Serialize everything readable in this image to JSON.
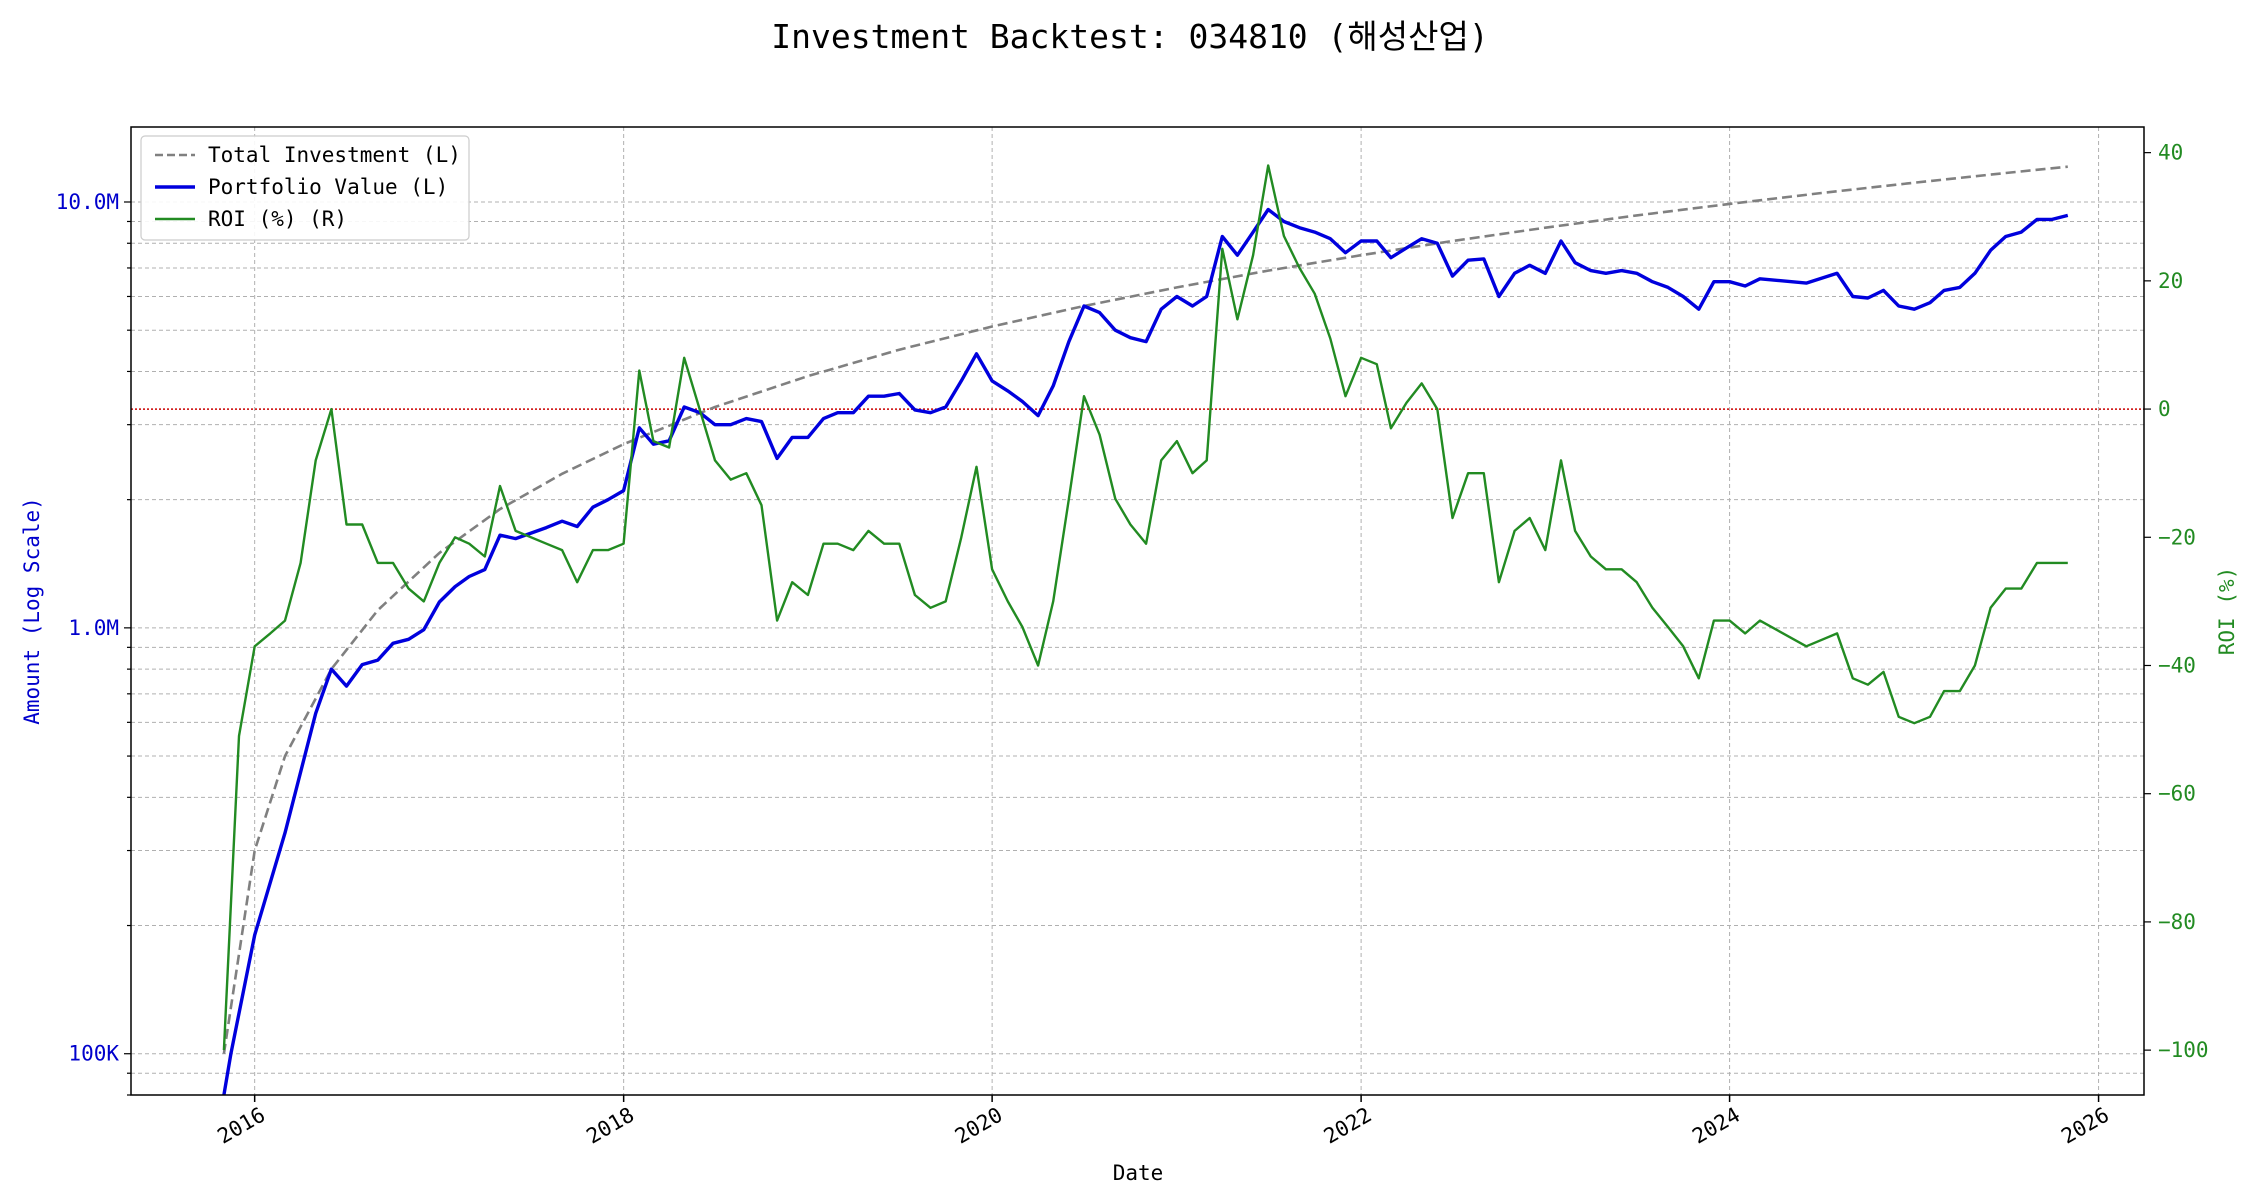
{
  "chart_data": {
    "type": "line",
    "title": "Investment Backtest: 034810 (해성산업)",
    "xlabel": "Date",
    "ylabel_left": "Amount (Log Scale)",
    "ylabel_right": "ROI (%)",
    "left_scale": "log",
    "left_ylim": [
      80000,
      15000000
    ],
    "right_ylim": [
      -107,
      44
    ],
    "xlim": [
      "2015-05-01",
      "2026-04-01"
    ],
    "grid": true,
    "legend_position": "top-left",
    "x_ticks": [
      "2016",
      "2018",
      "2020",
      "2022",
      "2024",
      "2026"
    ],
    "left_ticks": [
      {
        "value": 100000,
        "label": "100K"
      },
      {
        "value": 1000000,
        "label": "1.0M"
      },
      {
        "value": 10000000,
        "label": "10.0M"
      }
    ],
    "right_ticks": [
      -100,
      -80,
      -60,
      -40,
      -20,
      0,
      20,
      40
    ],
    "zero_reference_line": {
      "axis": "right",
      "value": 0,
      "color": "#cc0000"
    },
    "colors": {
      "left_axis": "#0000cc",
      "right_axis": "#228B22"
    },
    "series": [
      {
        "name": "Total Investment (L)",
        "axis": "left",
        "color": "#808080",
        "dash": "dashed",
        "points": [
          [
            "2015-11-01",
            100000
          ],
          [
            "2016-01-01",
            300000
          ],
          [
            "2016-03-01",
            500000
          ],
          [
            "2016-06-01",
            800000
          ],
          [
            "2016-09-01",
            1100000
          ],
          [
            "2017-01-01",
            1500000
          ],
          [
            "2017-05-01",
            1900000
          ],
          [
            "2017-09-01",
            2300000
          ],
          [
            "2018-01-01",
            2700000
          ],
          [
            "2018-07-01",
            3300000
          ],
          [
            "2019-01-01",
            3900000
          ],
          [
            "2019-07-01",
            4500000
          ],
          [
            "2020-01-01",
            5100000
          ],
          [
            "2020-07-01",
            5700000
          ],
          [
            "2021-01-01",
            6300000
          ],
          [
            "2021-07-01",
            6900000
          ],
          [
            "2022-01-01",
            7500000
          ],
          [
            "2022-07-01",
            8100000
          ],
          [
            "2023-01-01",
            8700000
          ],
          [
            "2023-07-01",
            9300000
          ],
          [
            "2024-01-01",
            9900000
          ],
          [
            "2024-07-01",
            10500000
          ],
          [
            "2025-01-01",
            11100000
          ],
          [
            "2025-07-01",
            11700000
          ],
          [
            "2025-11-01",
            12100000
          ]
        ]
      },
      {
        "name": "Portfolio Value (L)",
        "axis": "left",
        "color": "#0000dd",
        "dash": "solid",
        "points": [
          [
            "2015-11-01",
            70000
          ],
          [
            "2015-11-15",
            100000
          ],
          [
            "2016-01-01",
            190000
          ],
          [
            "2016-03-01",
            330000
          ],
          [
            "2016-05-01",
            630000
          ],
          [
            "2016-06-01",
            800000
          ],
          [
            "2016-07-01",
            730000
          ],
          [
            "2016-08-01",
            820000
          ],
          [
            "2016-09-01",
            840000
          ],
          [
            "2016-10-01",
            920000
          ],
          [
            "2016-11-01",
            940000
          ],
          [
            "2016-12-01",
            990000
          ],
          [
            "2017-01-01",
            1150000
          ],
          [
            "2017-02-01",
            1250000
          ],
          [
            "2017-03-01",
            1320000
          ],
          [
            "2017-04-01",
            1370000
          ],
          [
            "2017-05-01",
            1650000
          ],
          [
            "2017-06-01",
            1620000
          ],
          [
            "2017-08-01",
            1720000
          ],
          [
            "2017-09-01",
            1780000
          ],
          [
            "2017-10-01",
            1730000
          ],
          [
            "2017-11-01",
            1920000
          ],
          [
            "2017-12-01",
            2000000
          ],
          [
            "2018-01-01",
            2100000
          ],
          [
            "2018-02-01",
            2950000
          ],
          [
            "2018-03-01",
            2700000
          ],
          [
            "2018-04-01",
            2750000
          ],
          [
            "2018-05-01",
            3300000
          ],
          [
            "2018-06-01",
            3200000
          ],
          [
            "2018-07-01",
            3000000
          ],
          [
            "2018-08-01",
            3000000
          ],
          [
            "2018-09-01",
            3100000
          ],
          [
            "2018-10-01",
            3050000
          ],
          [
            "2018-11-01",
            2500000
          ],
          [
            "2018-12-01",
            2800000
          ],
          [
            "2019-01-01",
            2800000
          ],
          [
            "2019-02-01",
            3100000
          ],
          [
            "2019-03-01",
            3200000
          ],
          [
            "2019-04-01",
            3200000
          ],
          [
            "2019-05-01",
            3500000
          ],
          [
            "2019-06-01",
            3500000
          ],
          [
            "2019-07-01",
            3550000
          ],
          [
            "2019-08-01",
            3250000
          ],
          [
            "2019-09-01",
            3200000
          ],
          [
            "2019-10-01",
            3300000
          ],
          [
            "2019-11-01",
            3800000
          ],
          [
            "2019-12-01",
            4400000
          ],
          [
            "2020-01-01",
            3800000
          ],
          [
            "2020-02-01",
            3600000
          ],
          [
            "2020-03-01",
            3400000
          ],
          [
            "2020-04-01",
            3150000
          ],
          [
            "2020-05-01",
            3700000
          ],
          [
            "2020-06-01",
            4700000
          ],
          [
            "2020-07-01",
            5700000
          ],
          [
            "2020-08-01",
            5500000
          ],
          [
            "2020-09-01",
            5000000
          ],
          [
            "2020-10-01",
            4800000
          ],
          [
            "2020-11-01",
            4700000
          ],
          [
            "2020-12-01",
            5600000
          ],
          [
            "2021-01-01",
            6000000
          ],
          [
            "2021-02-01",
            5700000
          ],
          [
            "2021-03-01",
            6000000
          ],
          [
            "2021-04-01",
            8300000
          ],
          [
            "2021-05-01",
            7500000
          ],
          [
            "2021-06-01",
            8500000
          ],
          [
            "2021-07-01",
            9600000
          ],
          [
            "2021-08-01",
            9000000
          ],
          [
            "2021-09-01",
            8700000
          ],
          [
            "2021-10-01",
            8500000
          ],
          [
            "2021-11-01",
            8200000
          ],
          [
            "2021-12-01",
            7600000
          ],
          [
            "2022-01-01",
            8100000
          ],
          [
            "2022-02-01",
            8100000
          ],
          [
            "2022-03-01",
            7400000
          ],
          [
            "2022-04-01",
            7800000
          ],
          [
            "2022-05-01",
            8200000
          ],
          [
            "2022-06-01",
            8000000
          ],
          [
            "2022-07-01",
            6700000
          ],
          [
            "2022-08-01",
            7300000
          ],
          [
            "2022-09-01",
            7350000
          ],
          [
            "2022-10-01",
            6000000
          ],
          [
            "2022-11-01",
            6800000
          ],
          [
            "2022-12-01",
            7100000
          ],
          [
            "2023-01-01",
            6800000
          ],
          [
            "2023-02-01",
            8100000
          ],
          [
            "2023-03-01",
            7200000
          ],
          [
            "2023-04-01",
            6900000
          ],
          [
            "2023-05-01",
            6800000
          ],
          [
            "2023-06-01",
            6900000
          ],
          [
            "2023-07-01",
            6800000
          ],
          [
            "2023-08-01",
            6500000
          ],
          [
            "2023-09-01",
            6300000
          ],
          [
            "2023-10-01",
            6000000
          ],
          [
            "2023-11-01",
            5600000
          ],
          [
            "2023-12-01",
            6500000
          ],
          [
            "2024-01-01",
            6500000
          ],
          [
            "2024-02-01",
            6350000
          ],
          [
            "2024-03-01",
            6600000
          ],
          [
            "2024-06-01",
            6450000
          ],
          [
            "2024-08-01",
            6800000
          ],
          [
            "2024-09-01",
            6000000
          ],
          [
            "2024-10-01",
            5950000
          ],
          [
            "2024-11-01",
            6200000
          ],
          [
            "2024-12-01",
            5700000
          ],
          [
            "2025-01-01",
            5600000
          ],
          [
            "2025-02-01",
            5800000
          ],
          [
            "2025-03-01",
            6200000
          ],
          [
            "2025-04-01",
            6300000
          ],
          [
            "2025-05-01",
            6800000
          ],
          [
            "2025-06-01",
            7700000
          ],
          [
            "2025-07-01",
            8300000
          ],
          [
            "2025-08-01",
            8500000
          ],
          [
            "2025-09-01",
            9100000
          ],
          [
            "2025-10-01",
            9100000
          ],
          [
            "2025-11-01",
            9300000
          ]
        ]
      },
      {
        "name": "ROI (%) (R)",
        "axis": "right",
        "color": "#228B22",
        "dash": "solid",
        "points": [
          [
            "2015-11-01",
            -100
          ],
          [
            "2015-12-01",
            -51
          ],
          [
            "2016-01-01",
            -37
          ],
          [
            "2016-02-01",
            -35
          ],
          [
            "2016-03-01",
            -33
          ],
          [
            "2016-04-01",
            -24
          ],
          [
            "2016-05-01",
            -8
          ],
          [
            "2016-06-01",
            0
          ],
          [
            "2016-07-01",
            -18
          ],
          [
            "2016-08-01",
            -18
          ],
          [
            "2016-09-01",
            -24
          ],
          [
            "2016-10-01",
            -24
          ],
          [
            "2016-11-01",
            -28
          ],
          [
            "2016-12-01",
            -30
          ],
          [
            "2017-01-01",
            -24
          ],
          [
            "2017-02-01",
            -20
          ],
          [
            "2017-03-01",
            -21
          ],
          [
            "2017-04-01",
            -23
          ],
          [
            "2017-05-01",
            -12
          ],
          [
            "2017-06-01",
            -19
          ],
          [
            "2017-08-01",
            -21
          ],
          [
            "2017-09-01",
            -22
          ],
          [
            "2017-10-01",
            -27
          ],
          [
            "2017-11-01",
            -22
          ],
          [
            "2017-12-01",
            -22
          ],
          [
            "2018-01-01",
            -21
          ],
          [
            "2018-02-01",
            6
          ],
          [
            "2018-03-01",
            -5
          ],
          [
            "2018-04-01",
            -6
          ],
          [
            "2018-05-01",
            8
          ],
          [
            "2018-07-01",
            -8
          ],
          [
            "2018-08-01",
            -11
          ],
          [
            "2018-09-01",
            -10
          ],
          [
            "2018-10-01",
            -15
          ],
          [
            "2018-11-01",
            -33
          ],
          [
            "2018-12-01",
            -27
          ],
          [
            "2019-01-01",
            -29
          ],
          [
            "2019-02-01",
            -21
          ],
          [
            "2019-03-01",
            -21
          ],
          [
            "2019-04-01",
            -22
          ],
          [
            "2019-05-01",
            -19
          ],
          [
            "2019-06-01",
            -21
          ],
          [
            "2019-07-01",
            -21
          ],
          [
            "2019-08-01",
            -29
          ],
          [
            "2019-09-01",
            -31
          ],
          [
            "2019-10-01",
            -30
          ],
          [
            "2019-11-01",
            -20
          ],
          [
            "2019-12-01",
            -9
          ],
          [
            "2020-01-01",
            -25
          ],
          [
            "2020-02-01",
            -30
          ],
          [
            "2020-03-01",
            -34
          ],
          [
            "2020-04-01",
            -40
          ],
          [
            "2020-05-01",
            -30
          ],
          [
            "2020-06-01",
            -14
          ],
          [
            "2020-07-01",
            2
          ],
          [
            "2020-08-01",
            -4
          ],
          [
            "2020-09-01",
            -14
          ],
          [
            "2020-10-01",
            -18
          ],
          [
            "2020-11-01",
            -21
          ],
          [
            "2020-12-01",
            -8
          ],
          [
            "2021-01-01",
            -5
          ],
          [
            "2021-02-01",
            -10
          ],
          [
            "2021-03-01",
            -8
          ],
          [
            "2021-04-01",
            25
          ],
          [
            "2021-05-01",
            14
          ],
          [
            "2021-06-01",
            24
          ],
          [
            "2021-07-01",
            38
          ],
          [
            "2021-08-01",
            27
          ],
          [
            "2021-09-01",
            22
          ],
          [
            "2021-10-01",
            18
          ],
          [
            "2021-11-01",
            11
          ],
          [
            "2021-12-01",
            2
          ],
          [
            "2022-01-01",
            8
          ],
          [
            "2022-02-01",
            7
          ],
          [
            "2022-03-01",
            -3
          ],
          [
            "2022-04-01",
            1
          ],
          [
            "2022-05-01",
            4
          ],
          [
            "2022-06-01",
            0
          ],
          [
            "2022-07-01",
            -17
          ],
          [
            "2022-08-01",
            -10
          ],
          [
            "2022-09-01",
            -10
          ],
          [
            "2022-10-01",
            -27
          ],
          [
            "2022-11-01",
            -19
          ],
          [
            "2022-12-01",
            -17
          ],
          [
            "2023-01-01",
            -22
          ],
          [
            "2023-02-01",
            -8
          ],
          [
            "2023-03-01",
            -19
          ],
          [
            "2023-04-01",
            -23
          ],
          [
            "2023-05-01",
            -25
          ],
          [
            "2023-06-01",
            -25
          ],
          [
            "2023-07-01",
            -27
          ],
          [
            "2023-08-01",
            -31
          ],
          [
            "2023-09-01",
            -34
          ],
          [
            "2023-10-01",
            -37
          ],
          [
            "2023-11-01",
            -42
          ],
          [
            "2023-12-01",
            -33
          ],
          [
            "2024-01-01",
            -33
          ],
          [
            "2024-02-01",
            -35
          ],
          [
            "2024-03-01",
            -33
          ],
          [
            "2024-06-01",
            -37
          ],
          [
            "2024-08-01",
            -35
          ],
          [
            "2024-09-01",
            -42
          ],
          [
            "2024-10-01",
            -43
          ],
          [
            "2024-11-01",
            -41
          ],
          [
            "2024-12-01",
            -48
          ],
          [
            "2025-01-01",
            -49
          ],
          [
            "2025-02-01",
            -48
          ],
          [
            "2025-03-01",
            -44
          ],
          [
            "2025-04-01",
            -44
          ],
          [
            "2025-05-01",
            -40
          ],
          [
            "2025-06-01",
            -31
          ],
          [
            "2025-07-01",
            -28
          ],
          [
            "2025-08-01",
            -28
          ],
          [
            "2025-09-01",
            -24
          ],
          [
            "2025-10-01",
            -24
          ],
          [
            "2025-11-01",
            -24
          ]
        ]
      }
    ]
  }
}
